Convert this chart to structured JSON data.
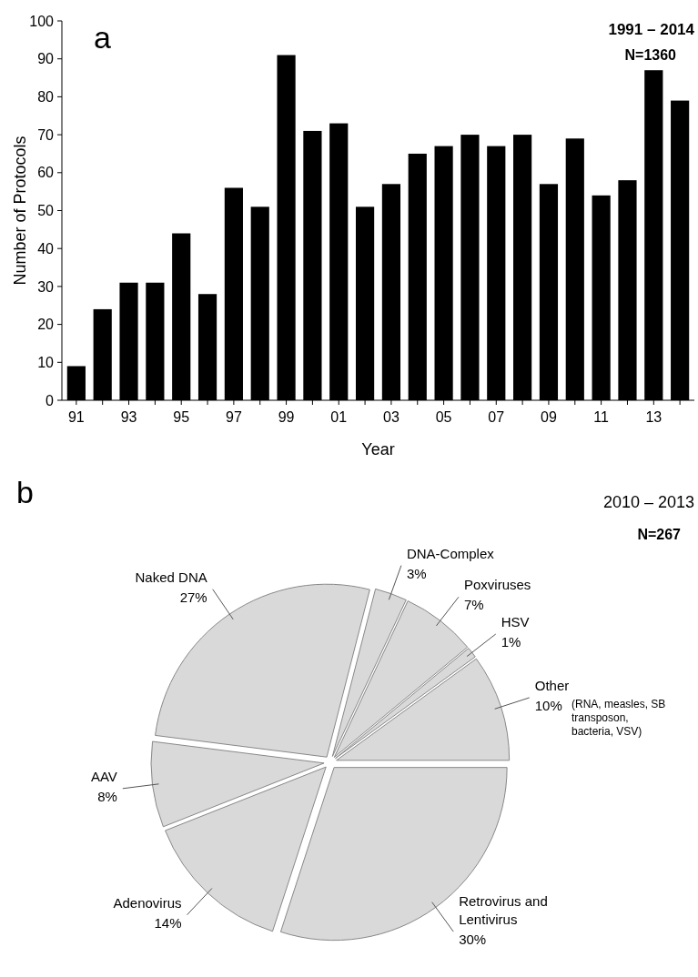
{
  "chart_data": [
    {
      "type": "bar",
      "title": "1991 – 2014",
      "subtitle": "N=1360",
      "xlabel": "Year",
      "ylabel": "Number of Protocols",
      "annotations": [
        "a"
      ],
      "categories": [
        "91",
        null,
        "93",
        null,
        "95",
        null,
        "97",
        null,
        "99",
        null,
        "01",
        null,
        "03",
        null,
        "05",
        null,
        "07",
        null,
        "09",
        null,
        "11",
        null,
        "13",
        null
      ],
      "values": [
        9,
        24,
        31,
        31,
        44,
        28,
        56,
        51,
        91,
        71,
        73,
        51,
        57,
        65,
        67,
        70,
        67,
        70,
        57,
        69,
        54,
        58,
        87,
        79
      ],
      "color": "#000000",
      "ylim": [
        0,
        100
      ],
      "yticks": [
        0,
        10,
        20,
        30,
        40,
        50,
        60,
        70,
        80,
        90,
        100
      ],
      "grid": false
    },
    {
      "type": "pie",
      "title": "2010 – 2013",
      "subtitle": "N=267",
      "annotations": [
        "b",
        "(RNA, measles, SB transposon, bacteria, VSV)"
      ],
      "categories": [
        "Retrovirus and Lentivirus",
        "Adenovirus",
        "AAV",
        "Naked DNA",
        "DNA-Complex",
        "Poxviruses",
        "HSV",
        "Other"
      ],
      "values": [
        30,
        14,
        8,
        27,
        3,
        7,
        1,
        10
      ],
      "value_labels": [
        "30%",
        "14%",
        "8%",
        "27%",
        "3%",
        "7%",
        "1%",
        "10%"
      ],
      "colors": [
        "#d9d9d9",
        "#d9d9d9",
        "#d9d9d9",
        "#d9d9d9",
        "#d9d9d9",
        "#d9d9d9",
        "#d9d9d9",
        "#d9d9d9"
      ]
    }
  ]
}
